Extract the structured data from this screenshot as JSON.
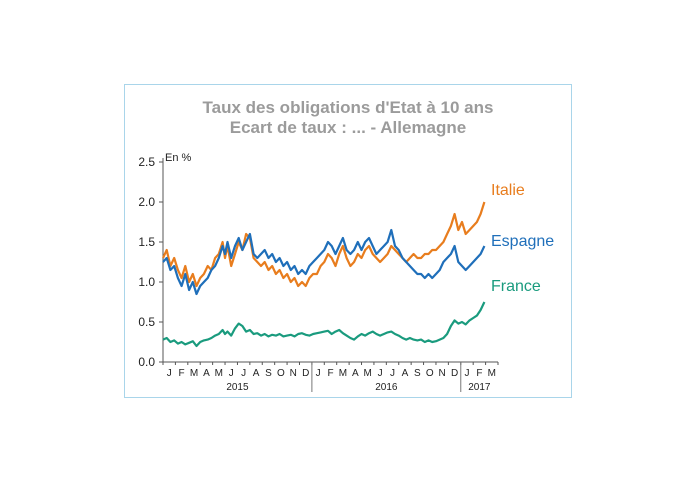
{
  "chart_data": {
    "type": "line",
    "title": "Taux des obligations d'Etat à 10 ans",
    "subtitle": "Ecart de taux : ... - Allemagne",
    "ylabel": "En %",
    "ylim": [
      0,
      2.5
    ],
    "yticks": [
      "0.0",
      "0.5",
      "1.0",
      "1.5",
      "2.0",
      "2.5"
    ],
    "x_months": [
      "J",
      "F",
      "M",
      "A",
      "M",
      "J",
      "J",
      "A",
      "S",
      "O",
      "N",
      "D",
      "J",
      "F",
      "M",
      "A",
      "M",
      "J",
      "J",
      "A",
      "S",
      "O",
      "N",
      "D",
      "J",
      "F",
      "M"
    ],
    "years": [
      {
        "label": "2015",
        "center_index": 5.5
      },
      {
        "label": "2016",
        "center_index": 17.5
      },
      {
        "label": "2017",
        "center_index": 25.0
      }
    ],
    "x_unit": "months since Jan 2015",
    "series": [
      {
        "name": "Italie",
        "color": "#e87d1e",
        "x": [
          0,
          0.3,
          0.6,
          0.9,
          1.2,
          1.5,
          1.8,
          2.1,
          2.4,
          2.7,
          3.0,
          3.3,
          3.6,
          3.9,
          4.2,
          4.5,
          4.8,
          5.0,
          5.2,
          5.5,
          5.8,
          6.1,
          6.4,
          6.7,
          7.0,
          7.3,
          7.6,
          7.9,
          8.2,
          8.5,
          8.8,
          9.1,
          9.4,
          9.7,
          10.0,
          10.3,
          10.6,
          10.9,
          11.2,
          11.5,
          11.8,
          12.1,
          12.4,
          12.7,
          13.0,
          13.3,
          13.6,
          13.9,
          14.2,
          14.5,
          14.8,
          15.1,
          15.4,
          15.7,
          16.0,
          16.3,
          16.6,
          16.9,
          17.2,
          17.5,
          17.8,
          18.1,
          18.4,
          18.7,
          19.0,
          19.3,
          19.6,
          19.9,
          20.2,
          20.5,
          20.8,
          21.1,
          21.4,
          21.7,
          22.0,
          22.3,
          22.6,
          22.9,
          23.2,
          23.5,
          23.8,
          24.1,
          24.4,
          24.7,
          25.0,
          25.3,
          25.6,
          25.9
        ],
        "values": [
          1.3,
          1.4,
          1.2,
          1.3,
          1.15,
          1.05,
          1.2,
          1.0,
          1.1,
          0.95,
          1.05,
          1.1,
          1.2,
          1.15,
          1.3,
          1.35,
          1.5,
          1.3,
          1.45,
          1.2,
          1.35,
          1.5,
          1.4,
          1.6,
          1.55,
          1.3,
          1.25,
          1.2,
          1.25,
          1.15,
          1.2,
          1.1,
          1.15,
          1.05,
          1.1,
          1.0,
          1.05,
          0.95,
          1.0,
          0.95,
          1.05,
          1.1,
          1.1,
          1.2,
          1.25,
          1.35,
          1.3,
          1.2,
          1.35,
          1.45,
          1.3,
          1.2,
          1.25,
          1.35,
          1.3,
          1.4,
          1.45,
          1.35,
          1.3,
          1.25,
          1.3,
          1.35,
          1.45,
          1.4,
          1.35,
          1.3,
          1.25,
          1.3,
          1.35,
          1.3,
          1.3,
          1.35,
          1.35,
          1.4,
          1.4,
          1.45,
          1.5,
          1.6,
          1.7,
          1.85,
          1.65,
          1.75,
          1.6,
          1.65,
          1.7,
          1.75,
          1.85,
          2.0
        ]
      },
      {
        "name": "Espagne",
        "color": "#1f6fba",
        "x": [
          0,
          0.3,
          0.6,
          0.9,
          1.2,
          1.5,
          1.8,
          2.1,
          2.4,
          2.7,
          3.0,
          3.3,
          3.6,
          3.9,
          4.2,
          4.5,
          4.8,
          5.0,
          5.2,
          5.5,
          5.8,
          6.1,
          6.4,
          6.7,
          7.0,
          7.3,
          7.6,
          7.9,
          8.2,
          8.5,
          8.8,
          9.1,
          9.4,
          9.7,
          10.0,
          10.3,
          10.6,
          10.9,
          11.2,
          11.5,
          11.8,
          12.1,
          12.4,
          12.7,
          13.0,
          13.3,
          13.6,
          13.9,
          14.2,
          14.5,
          14.8,
          15.1,
          15.4,
          15.7,
          16.0,
          16.3,
          16.6,
          16.9,
          17.2,
          17.5,
          17.8,
          18.1,
          18.4,
          18.7,
          19.0,
          19.3,
          19.6,
          19.9,
          20.2,
          20.5,
          20.8,
          21.1,
          21.4,
          21.7,
          22.0,
          22.3,
          22.6,
          22.9,
          23.2,
          23.5,
          23.8,
          24.1,
          24.4,
          24.7,
          25.0,
          25.3,
          25.6,
          25.9
        ],
        "values": [
          1.25,
          1.3,
          1.15,
          1.2,
          1.05,
          0.95,
          1.1,
          0.9,
          1.0,
          0.85,
          0.95,
          1.0,
          1.05,
          1.15,
          1.2,
          1.3,
          1.45,
          1.35,
          1.5,
          1.3,
          1.45,
          1.55,
          1.4,
          1.5,
          1.6,
          1.35,
          1.3,
          1.35,
          1.4,
          1.3,
          1.35,
          1.25,
          1.3,
          1.2,
          1.25,
          1.15,
          1.2,
          1.1,
          1.15,
          1.1,
          1.2,
          1.25,
          1.3,
          1.35,
          1.4,
          1.5,
          1.45,
          1.35,
          1.45,
          1.55,
          1.4,
          1.35,
          1.4,
          1.5,
          1.4,
          1.5,
          1.55,
          1.45,
          1.35,
          1.4,
          1.45,
          1.5,
          1.65,
          1.45,
          1.4,
          1.3,
          1.25,
          1.2,
          1.15,
          1.1,
          1.1,
          1.05,
          1.1,
          1.05,
          1.1,
          1.15,
          1.25,
          1.3,
          1.35,
          1.45,
          1.25,
          1.2,
          1.15,
          1.2,
          1.25,
          1.3,
          1.35,
          1.45
        ]
      },
      {
        "name": "France",
        "color": "#1a9b7e",
        "x": [
          0,
          0.3,
          0.6,
          0.9,
          1.2,
          1.5,
          1.8,
          2.1,
          2.4,
          2.7,
          3.0,
          3.3,
          3.6,
          3.9,
          4.2,
          4.5,
          4.8,
          5.0,
          5.2,
          5.5,
          5.8,
          6.1,
          6.4,
          6.7,
          7.0,
          7.3,
          7.6,
          7.9,
          8.2,
          8.5,
          8.8,
          9.1,
          9.4,
          9.7,
          10.0,
          10.3,
          10.6,
          10.9,
          11.2,
          11.5,
          11.8,
          12.1,
          12.4,
          12.7,
          13.0,
          13.3,
          13.6,
          13.9,
          14.2,
          14.5,
          14.8,
          15.1,
          15.4,
          15.7,
          16.0,
          16.3,
          16.6,
          16.9,
          17.2,
          17.5,
          17.8,
          18.1,
          18.4,
          18.7,
          19.0,
          19.3,
          19.6,
          19.9,
          20.2,
          20.5,
          20.8,
          21.1,
          21.4,
          21.7,
          22.0,
          22.3,
          22.6,
          22.9,
          23.2,
          23.5,
          23.8,
          24.1,
          24.4,
          24.7,
          25.0,
          25.3,
          25.6,
          25.9
        ],
        "values": [
          0.28,
          0.3,
          0.25,
          0.27,
          0.23,
          0.25,
          0.22,
          0.24,
          0.26,
          0.2,
          0.25,
          0.27,
          0.28,
          0.3,
          0.33,
          0.35,
          0.4,
          0.35,
          0.38,
          0.33,
          0.42,
          0.48,
          0.45,
          0.38,
          0.4,
          0.35,
          0.36,
          0.33,
          0.35,
          0.32,
          0.34,
          0.33,
          0.35,
          0.32,
          0.33,
          0.34,
          0.32,
          0.35,
          0.36,
          0.34,
          0.33,
          0.35,
          0.36,
          0.37,
          0.38,
          0.39,
          0.35,
          0.38,
          0.4,
          0.36,
          0.33,
          0.3,
          0.28,
          0.32,
          0.35,
          0.33,
          0.36,
          0.38,
          0.35,
          0.33,
          0.35,
          0.37,
          0.38,
          0.35,
          0.33,
          0.3,
          0.28,
          0.3,
          0.28,
          0.27,
          0.28,
          0.25,
          0.27,
          0.25,
          0.26,
          0.28,
          0.3,
          0.35,
          0.45,
          0.52,
          0.48,
          0.5,
          0.47,
          0.52,
          0.55,
          0.58,
          0.65,
          0.75
        ]
      }
    ]
  }
}
